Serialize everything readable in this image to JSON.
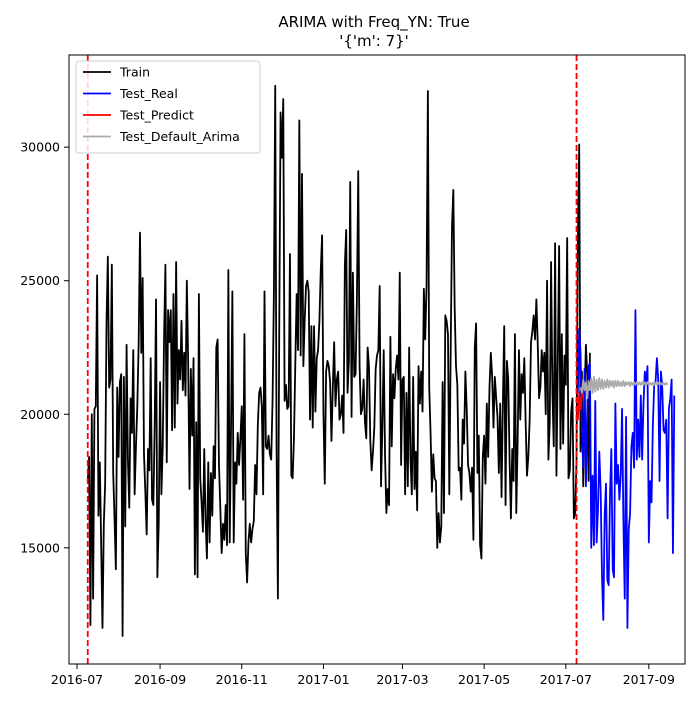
{
  "chart_data": {
    "type": "line",
    "title": "ARIMA with Freq_YN: True",
    "subtitle": "'{'m': 7}'",
    "xlabel": "",
    "ylabel": "",
    "xlim": [
      "2016-06-25",
      "2017-09-28"
    ],
    "ylim": [
      10650,
      33450
    ],
    "x_ticks": [
      "2016-07",
      "2016-09",
      "2016-11",
      "2017-01",
      "2017-03",
      "2017-05",
      "2017-07",
      "2017-09"
    ],
    "y_ticks": [
      15000,
      20000,
      25000,
      30000
    ],
    "y_tick_labels": [
      "15000",
      "20000",
      "25000",
      "30000"
    ],
    "grid": false,
    "legend_position": "top-left",
    "vlines": [
      {
        "x": "2016-07-09",
        "color": "#ff0000",
        "style": "dashed"
      },
      {
        "x": "2017-07-09",
        "color": "#ff0000",
        "style": "dashed"
      }
    ],
    "series": [
      {
        "name": "Train",
        "color": "#000000",
        "x_start": "2016-07-09",
        "step_days": 1,
        "values": [
          17500,
          18400,
          12100,
          20000,
          13100,
          20200,
          20300,
          25200,
          16200,
          18200,
          15200,
          12000,
          15900,
          17400,
          23400,
          25900,
          21000,
          21300,
          25600,
          17800,
          16100,
          14200,
          21000,
          18400,
          21200,
          21500,
          11700,
          21400,
          15800,
          22600,
          18300,
          16500,
          20600,
          19300,
          22400,
          17000,
          18800,
          20300,
          22600,
          26800,
          22300,
          25100,
          18500,
          17100,
          15500,
          18700,
          17900,
          22100,
          16800,
          16600,
          19600,
          24300,
          13900,
          15900,
          21200,
          17000,
          18800,
          22900,
          25600,
          18200,
          23900,
          22700,
          23900,
          19400,
          24500,
          19500,
          25700,
          20400,
          22400,
          21300,
          23500,
          20900,
          22300,
          20700,
          25000,
          21900,
          17200,
          21700,
          19200,
          22100,
          14000,
          19700,
          13900,
          24500,
          17600,
          16700,
          15600,
          18700,
          16000,
          14600,
          18200,
          15200,
          17800,
          16200,
          18800,
          17600,
          22500,
          22800,
          18100,
          16500,
          14800,
          15900,
          15300,
          16600,
          15100,
          25400,
          15200,
          19500,
          24600,
          15200,
          18200,
          17400,
          19300,
          18100,
          19100,
          20300,
          16800,
          23000,
          14800,
          13700,
          15200,
          15900,
          15200,
          15700,
          16000,
          18100,
          17000,
          19600,
          20800,
          21000,
          20300,
          17000,
          24600,
          18800,
          18700,
          19200,
          18500,
          18300,
          20500,
          24500,
          32300,
          18700,
          13100,
          23100,
          31300,
          29600,
          31800,
          20500,
          21100,
          20200,
          20300,
          26000,
          17700,
          17600,
          19100,
          21900,
          24500,
          22400,
          31000,
          22200,
          29000,
          21800,
          23500,
          24800,
          25000,
          24600,
          19800,
          23300,
          19500,
          23300,
          20100,
          22100,
          22400,
          23500,
          25400,
          26700,
          20100,
          17400,
          21600,
          22000,
          21800,
          21200,
          19000,
          21000,
          22700,
          20300,
          21300,
          21600,
          19800,
          20000,
          20700,
          19300,
          25600,
          26900,
          20800,
          22000,
          28700,
          19900,
          25300,
          21400,
          21500,
          24300,
          29100,
          21800,
          20000,
          20200,
          21300,
          19700,
          19100,
          22500,
          21800,
          19000,
          17900,
          18600,
          19500,
          21700,
          22200,
          22400,
          24800,
          17300,
          19500,
          22400,
          18500,
          16300,
          17200,
          16600,
          22900,
          18800,
          21500,
          20600,
          21700,
          22200,
          21300,
          25300,
          18100,
          21300,
          21400,
          17000,
          20800,
          17300,
          22500,
          18300,
          17000,
          21400,
          17200,
          18600,
          16400,
          21800,
          20400,
          21600,
          20100,
          24700,
          22800,
          24800,
          32100,
          21000,
          19300,
          17100,
          18500,
          17600,
          17500,
          15000,
          16300,
          15200,
          15800,
          21200,
          16300,
          23700,
          23500,
          23000,
          17000,
          22300,
          27000,
          28400,
          24000,
          21800,
          21100,
          17900,
          18000,
          16800,
          19800,
          18900,
          21600,
          20200,
          18100,
          17800,
          17100,
          18000,
          15300,
          22500,
          23400,
          17800,
          19200,
          15100,
          14600,
          18400,
          19200,
          17400,
          20400,
          18400,
          21000,
          22300,
          21400,
          19500,
          21400,
          20600,
          19900,
          17800,
          20400,
          16900,
          20400,
          23300,
          16600,
          22000,
          21300,
          18300,
          16100,
          18700,
          17500,
          23000,
          16300,
          18900,
          22400,
          19800,
          21500,
          20800,
          22100,
          19700,
          17700,
          18400,
          19800,
          22700,
          23100,
          23700,
          22800,
          24300,
          22700,
          20600,
          21000,
          22400,
          21600,
          22300,
          20000,
          25000,
          18300,
          19700,
          25700,
          20800,
          18800,
          26400,
          17700,
          21900,
          26300,
          18700,
          23000,
          18900,
          22200,
          21100,
          26600,
          17600,
          17900,
          20100,
          20600,
          16100,
          16300,
          18300,
          26500,
          30100,
          18600,
          21600,
          17300,
          20600,
          22600,
          21500,
          17500,
          22300
        ]
      },
      {
        "name": "Test_Real",
        "color": "#0000ff",
        "x_start": "2017-07-10",
        "step_days": 1,
        "values": [
          20800,
          23200,
          22300,
          19500,
          18000,
          21700,
          17300,
          20100,
          21800,
          21900,
          15000,
          17700,
          15100,
          20500,
          15200,
          16400,
          18600,
          17200,
          14000,
          12300,
          16200,
          17400,
          13800,
          13600,
          17000,
          18700,
          14200,
          13900,
          20400,
          17400,
          18100,
          16800,
          17700,
          20200,
          16000,
          13100,
          19900,
          12000,
          15700,
          16300,
          18800,
          19300,
          18000,
          23900,
          18300,
          19800,
          18400,
          20700,
          18300,
          20400,
          21600,
          21200,
          21800,
          15200,
          17500,
          16700,
          19600,
          21100,
          21200,
          22100,
          21300,
          17500,
          21600,
          21000,
          19400,
          19300,
          19800,
          16100,
          20200,
          20600,
          21300,
          14800,
          20700
        ]
      },
      {
        "name": "Test_Predict",
        "color": "#ff0000",
        "x_start": "2017-07-09",
        "step_days": 1,
        "values": [
          20300,
          19800,
          20800,
          20200,
          20700,
          20900,
          21000
        ]
      },
      {
        "name": "Test_Default_Arima",
        "color": "#aaaaaa",
        "x_start": "2017-07-12",
        "step_days": 1,
        "values": [
          21000,
          20800,
          21300,
          20900,
          21200,
          20600,
          21250,
          20900,
          21350,
          20800,
          21400,
          20850,
          21300,
          20900,
          21350,
          20950,
          21300,
          20950,
          21250,
          21000,
          21300,
          21000,
          21250,
          21050,
          21250,
          21000,
          21250,
          21050,
          21250,
          21050,
          21200,
          21050,
          21250,
          21050,
          21200,
          21100,
          21200,
          21050,
          21200,
          21100,
          21200,
          21100,
          21200,
          21100,
          21200,
          21100,
          21200,
          21100,
          21200,
          21100,
          21200,
          21100,
          21180,
          21100,
          21180,
          21100,
          21180,
          21110,
          21180,
          21110,
          21170,
          21110,
          21170,
          21110,
          21170,
          21110
        ]
      }
    ]
  }
}
